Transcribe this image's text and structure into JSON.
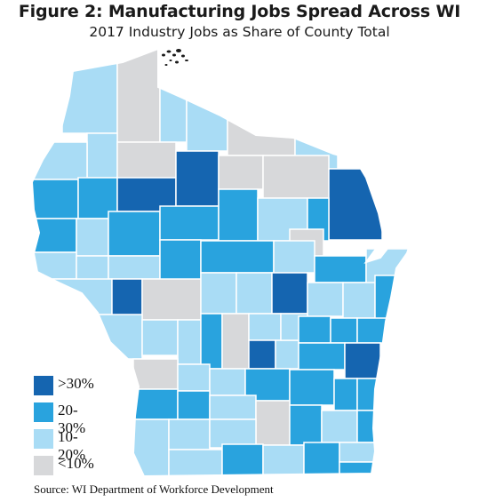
{
  "figure": {
    "title": "Figure 2: Manufacturing Jobs Spread Across WI",
    "subtitle": "2017 Industry Jobs as Share of County Total"
  },
  "legend": {
    "items": [
      {
        "label": ">30%",
        "color": "#1565b0"
      },
      {
        "label": "20-30%",
        "color": "#29a3de"
      },
      {
        "label": "10-20%",
        "color": "#a9dcf5"
      },
      {
        "label": "<10%",
        "color": "#d7d8da"
      }
    ]
  },
  "source": "Source: WI Department of Workforce Development"
}
